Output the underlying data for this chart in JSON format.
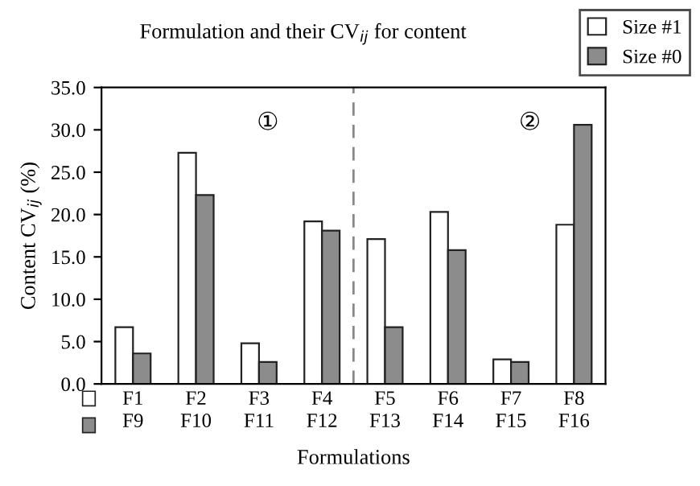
{
  "chart_data": {
    "type": "bar",
    "title": "Formulation and their CV$_{ij}$ for content",
    "xlabel": "Formulations",
    "ylabel": "Content CV$_{ij}$ (%)",
    "categories": [
      "F1\nF9",
      "F2\nF10",
      "F3\nF11",
      "F4\nF12",
      "F5\nF13",
      "F6\nF14",
      "F7\nF15",
      "F8\nF16"
    ],
    "series": [
      {
        "name": "Size #1",
        "color": "#ffffff",
        "values": [
          6.7,
          27.3,
          4.8,
          19.2,
          17.1,
          20.3,
          2.9,
          18.8
        ]
      },
      {
        "name": "Size #0",
        "color": "#8c8c8c",
        "values": [
          3.6,
          22.3,
          2.6,
          18.1,
          6.7,
          15.8,
          2.6,
          30.6
        ]
      }
    ],
    "ylim": [
      0,
      35
    ],
    "yticks": [
      {
        "value": 0,
        "label": "0.0"
      },
      {
        "value": 5,
        "label": "5.0"
      },
      {
        "value": 10,
        "label": "10.0"
      },
      {
        "value": 15,
        "label": "15.0"
      },
      {
        "value": 20,
        "label": "20.0"
      },
      {
        "value": 25,
        "label": "25.0"
      },
      {
        "value": 30,
        "label": "30.0"
      },
      {
        "value": 35,
        "label": "35.0"
      }
    ],
    "annotations": [
      "①",
      "②"
    ],
    "grid": false,
    "legend": "top right"
  }
}
